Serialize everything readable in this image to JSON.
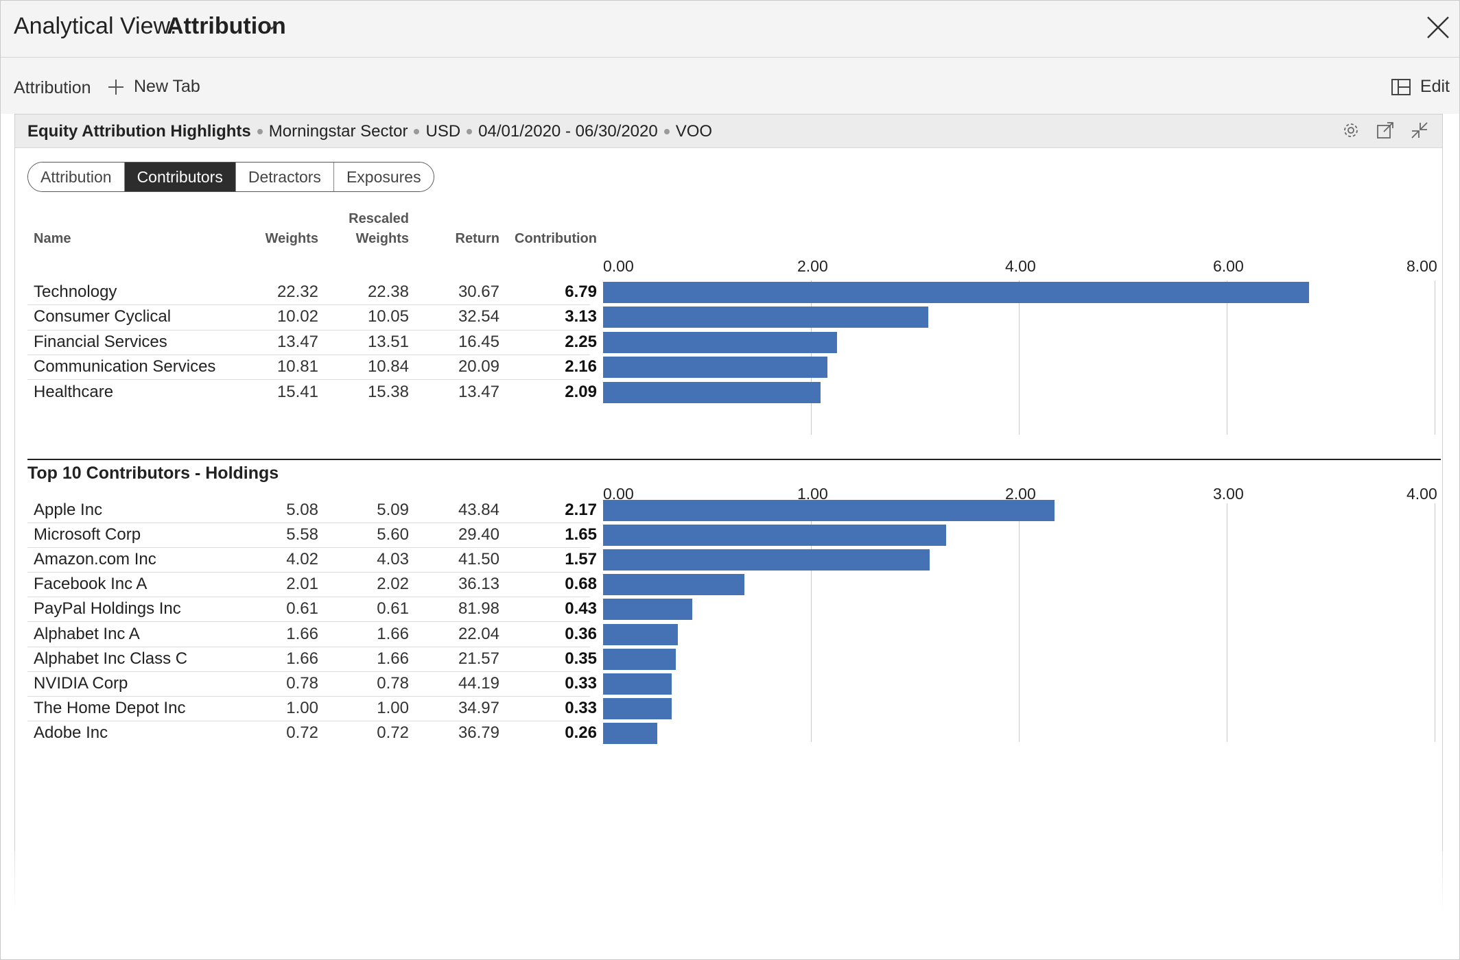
{
  "window": {
    "title_prefix": "Analytical View:",
    "title_view": "Attribution"
  },
  "tabs": {
    "current": "Attribution",
    "new_tab": "New Tab",
    "edit": "Edit"
  },
  "panel": {
    "title": "Equity Attribution Highlights",
    "meta": [
      "Morningstar Sector",
      "USD",
      "04/01/2020 - 06/30/2020",
      "VOO"
    ]
  },
  "segments": [
    {
      "label": "Attribution",
      "active": false
    },
    {
      "label": "Contributors",
      "active": true
    },
    {
      "label": "Detractors",
      "active": false
    },
    {
      "label": "Exposures",
      "active": false
    }
  ],
  "columns": {
    "name": "Name",
    "weights": "Weights",
    "rescaled_1": "Rescaled",
    "rescaled_2": "Weights",
    "return": "Return",
    "contribution": "Contribution"
  },
  "holdings_section_title": "Top 10 Contributors - Holdings",
  "colors": {
    "bar": "#4472b4",
    "active_segment": "#2d2d2d"
  },
  "chart_data": [
    {
      "type": "bar",
      "orientation": "horizontal",
      "axis_ticks": [
        "0.00",
        "2.00",
        "4.00",
        "6.00",
        "8.00"
      ],
      "xlim": [
        0,
        8
      ],
      "grid": true,
      "rows": [
        {
          "name": "Technology",
          "weights": "22.32",
          "rescaled": "22.38",
          "return": "30.67",
          "contribution": "6.79",
          "value": 6.79
        },
        {
          "name": "Consumer Cyclical",
          "weights": "10.02",
          "rescaled": "10.05",
          "return": "32.54",
          "contribution": "3.13",
          "value": 3.13
        },
        {
          "name": "Financial Services",
          "weights": "13.47",
          "rescaled": "13.51",
          "return": "16.45",
          "contribution": "2.25",
          "value": 2.25
        },
        {
          "name": "Communication Services",
          "weights": "10.81",
          "rescaled": "10.84",
          "return": "20.09",
          "contribution": "2.16",
          "value": 2.16
        },
        {
          "name": "Healthcare",
          "weights": "15.41",
          "rescaled": "15.38",
          "return": "13.47",
          "contribution": "2.09",
          "value": 2.09
        }
      ]
    },
    {
      "type": "bar",
      "orientation": "horizontal",
      "axis_ticks": [
        "0.00",
        "1.00",
        "2.00",
        "3.00",
        "4.00"
      ],
      "xlim": [
        0,
        4
      ],
      "grid": true,
      "rows": [
        {
          "name": "Apple Inc",
          "weights": "5.08",
          "rescaled": "5.09",
          "return": "43.84",
          "contribution": "2.17",
          "value": 2.17
        },
        {
          "name": "Microsoft Corp",
          "weights": "5.58",
          "rescaled": "5.60",
          "return": "29.40",
          "contribution": "1.65",
          "value": 1.65
        },
        {
          "name": "Amazon.com Inc",
          "weights": "4.02",
          "rescaled": "4.03",
          "return": "41.50",
          "contribution": "1.57",
          "value": 1.57
        },
        {
          "name": "Facebook Inc A",
          "weights": "2.01",
          "rescaled": "2.02",
          "return": "36.13",
          "contribution": "0.68",
          "value": 0.68
        },
        {
          "name": "PayPal Holdings Inc",
          "weights": "0.61",
          "rescaled": "0.61",
          "return": "81.98",
          "contribution": "0.43",
          "value": 0.43
        },
        {
          "name": "Alphabet Inc A",
          "weights": "1.66",
          "rescaled": "1.66",
          "return": "22.04",
          "contribution": "0.36",
          "value": 0.36
        },
        {
          "name": "Alphabet Inc Class C",
          "weights": "1.66",
          "rescaled": "1.66",
          "return": "21.57",
          "contribution": "0.35",
          "value": 0.35
        },
        {
          "name": "NVIDIA Corp",
          "weights": "0.78",
          "rescaled": "0.78",
          "return": "44.19",
          "contribution": "0.33",
          "value": 0.33
        },
        {
          "name": "The Home Depot Inc",
          "weights": "1.00",
          "rescaled": "1.00",
          "return": "34.97",
          "contribution": "0.33",
          "value": 0.33
        },
        {
          "name": "Adobe Inc",
          "weights": "0.72",
          "rescaled": "0.72",
          "return": "36.79",
          "contribution": "0.26",
          "value": 0.26
        }
      ]
    }
  ]
}
